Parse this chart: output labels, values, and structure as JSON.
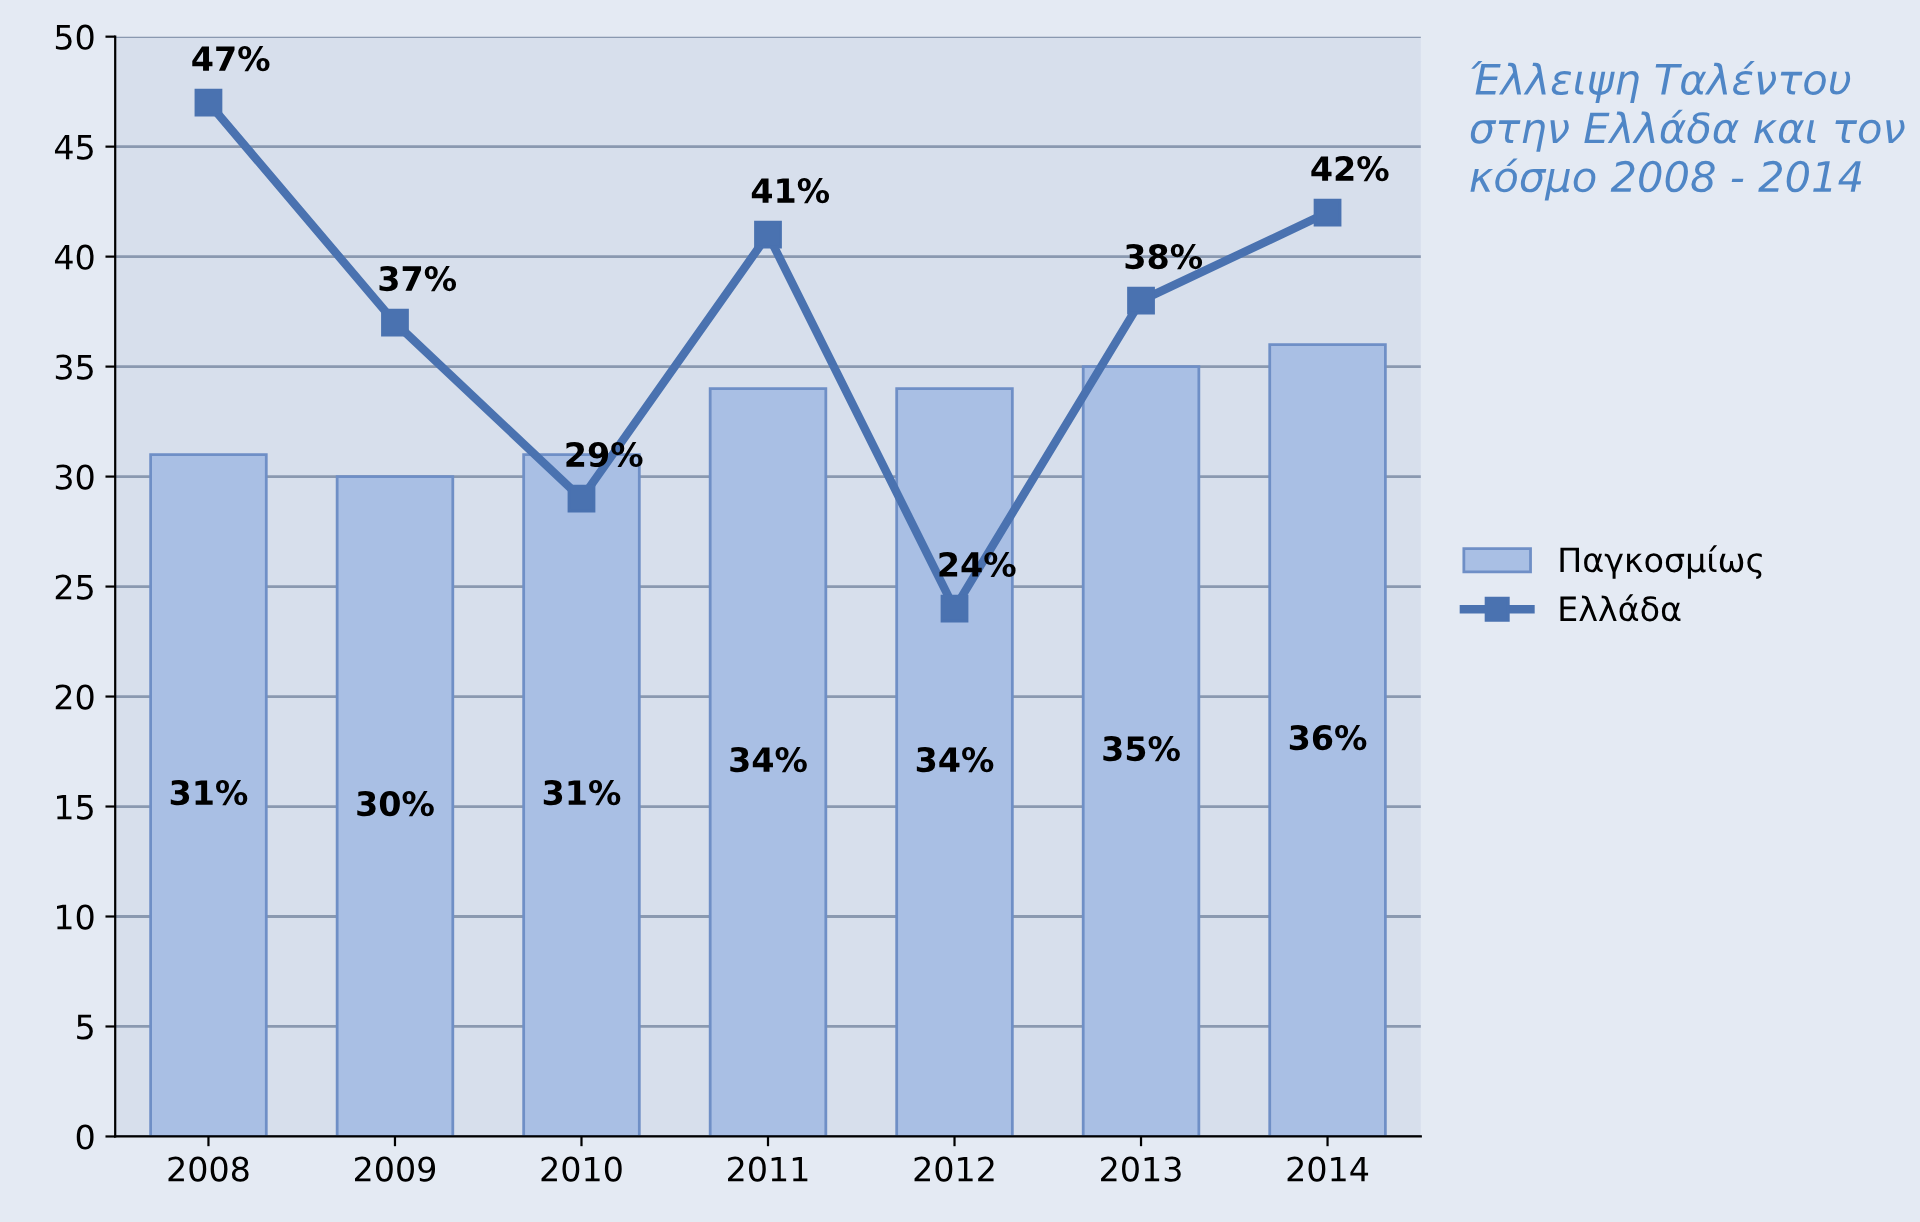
{
  "chart_data": {
    "type": "bar",
    "title": "Έλλειψη Ταλέντου στην Ελλάδα και τον κόσμο 2008 - 2014",
    "categories": [
      "2008",
      "2009",
      "2010",
      "2011",
      "2012",
      "2013",
      "2014"
    ],
    "series": [
      {
        "name": "Παγκοσμίως",
        "color": "#a9bfe4",
        "values": [
          31,
          30,
          31,
          34,
          34,
          35,
          36
        ],
        "value_labels": [
          "31%",
          "30%",
          "31%",
          "34%",
          "34%",
          "35%",
          "36%"
        ]
      },
      {
        "name": "Ελλάδα",
        "type": "line",
        "color": "#4a72b0",
        "marker": "square",
        "values": [
          47,
          37,
          29,
          41,
          24,
          38,
          42
        ],
        "value_labels": [
          "47%",
          "37%",
          "29%",
          "41%",
          "24%",
          "38%",
          "42%"
        ]
      }
    ],
    "ylim": [
      0,
      50
    ],
    "yticks": [
      0,
      5,
      10,
      15,
      20,
      25,
      30,
      35,
      40,
      45,
      50
    ],
    "grid": "y",
    "legend": "right"
  }
}
